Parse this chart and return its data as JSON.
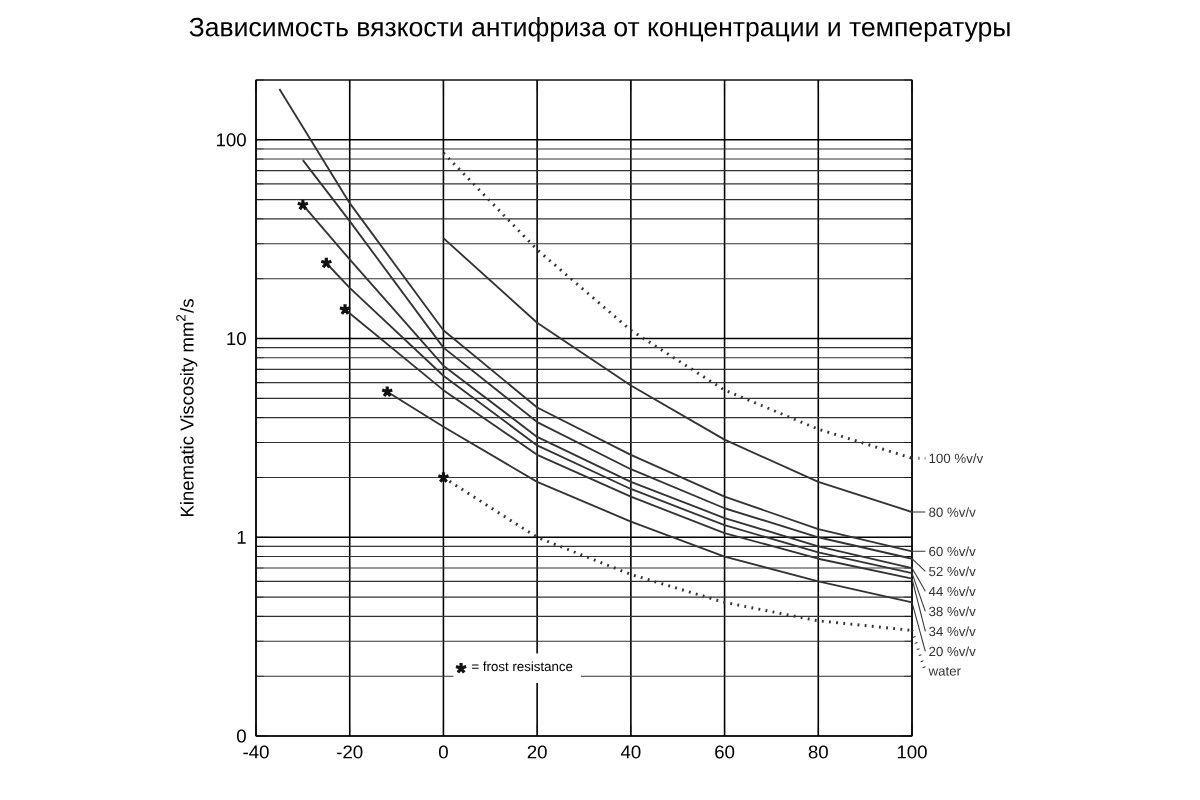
{
  "chart_data": {
    "type": "line",
    "title": "Зависимость вязкости антифриза от концентрации и температуры",
    "ylabel": "Kinematic Viscosity mm$^{2}$/s",
    "log": "y",
    "grid": true,
    "legend": "bottom right",
    "xlim": [
      -40,
      100
    ],
    "xticks": [
      -40,
      -20,
      0,
      20,
      40,
      60,
      80,
      100
    ],
    "ylim": [
      0.1,
      200
    ],
    "yticks": [
      {
        "value": 0.1,
        "label": "0"
      },
      1,
      10,
      100
    ],
    "series": [
      {
        "name": "100 %v/v",
        "color": "#333333",
        "line_style": "dotted",
        "x": [
          0,
          20,
          40,
          60,
          80,
          100
        ],
        "values": [
          86,
          28,
          11,
          5.5,
          3.5,
          2.5
        ]
      },
      {
        "name": "80 %v/v",
        "color": "#333333",
        "x": [
          0,
          20,
          40,
          60,
          80,
          100
        ],
        "values": [
          32,
          12,
          5.8,
          3.1,
          1.9,
          1.34
        ]
      },
      {
        "name": "60 %v/v",
        "color": "#333333",
        "x": [
          -35,
          -20,
          0,
          20,
          40,
          60,
          80,
          100
        ],
        "values": [
          180,
          48,
          11,
          4.5,
          2.6,
          1.6,
          1.1,
          0.85
        ]
      },
      {
        "name": "52 %v/v",
        "color": "#333333",
        "x": [
          -30,
          -20,
          0,
          20,
          40,
          60,
          80,
          100
        ],
        "values": [
          79,
          39,
          9,
          3.8,
          2.2,
          1.4,
          1.0,
          0.78
        ]
      },
      {
        "name": "44 %v/v",
        "color": "#333333",
        "x": [
          -30,
          -20,
          0,
          20,
          40,
          60,
          80,
          100
        ],
        "values": [
          47,
          25,
          7.3,
          3.2,
          1.9,
          1.25,
          0.9,
          0.7
        ]
      },
      {
        "name": "38 %v/v",
        "color": "#333333",
        "x": [
          -25,
          -20,
          0,
          20,
          40,
          60,
          80,
          100
        ],
        "values": [
          24,
          18,
          6.5,
          2.9,
          1.75,
          1.15,
          0.84,
          0.66
        ]
      },
      {
        "name": "34 %v/v",
        "color": "#333333",
        "x": [
          -21,
          0,
          20,
          40,
          60,
          80,
          100
        ],
        "values": [
          14,
          5.5,
          2.6,
          1.6,
          1.05,
          0.78,
          0.62
        ]
      },
      {
        "name": "20 %v/v",
        "color": "#333333",
        "x": [
          -12,
          0,
          20,
          40,
          60,
          80,
          100
        ],
        "values": [
          5.4,
          3.6,
          1.9,
          1.2,
          0.8,
          0.6,
          0.47
        ]
      },
      {
        "name": "water",
        "color": "#333333",
        "line_style": "dotted",
        "x": [
          0,
          20,
          40,
          60,
          80,
          100
        ],
        "values": [
          2.0,
          1.0,
          0.65,
          0.47,
          0.38,
          0.34
        ]
      },
      {
        "name": "= frost resistance",
        "type": "scatter",
        "marker": "cross",
        "color": "#111111",
        "x": [
          -30,
          -25,
          -21,
          -12,
          0
        ],
        "values": [
          47,
          24,
          14,
          5.4,
          2.0
        ]
      }
    ]
  }
}
